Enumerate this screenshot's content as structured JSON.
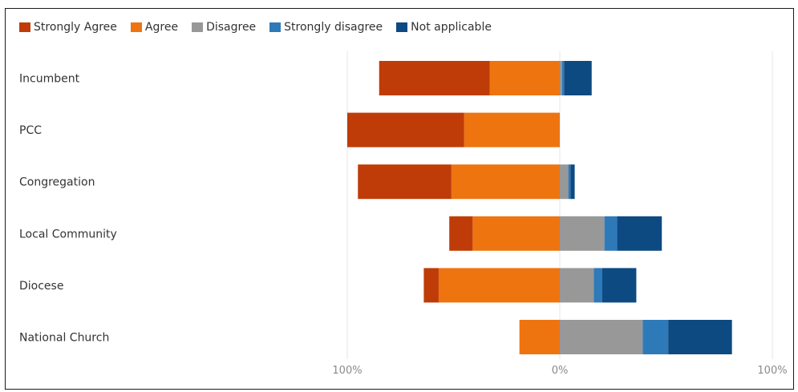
{
  "chart_data": {
    "type": "bar",
    "orientation": "horizontal",
    "stacking": "diverging",
    "categories": [
      "Incumbent",
      "PCC",
      "Congregation",
      "Local Community",
      "Diocese",
      "National Church"
    ],
    "series": [
      {
        "name": "Strongly Agree",
        "color": "#bf3c08",
        "values": [
          52,
          55,
          44,
          11,
          7,
          0
        ]
      },
      {
        "name": "Agree",
        "color": "#ee7410",
        "values": [
          33,
          45,
          51,
          41,
          57,
          19
        ]
      },
      {
        "name": "Disagree",
        "color": "#989898",
        "values": [
          1,
          0,
          4,
          21,
          16,
          39
        ]
      },
      {
        "name": "Strongly disagree",
        "color": "#2e7ab8",
        "values": [
          1,
          0,
          1,
          6,
          4,
          12
        ]
      },
      {
        "name": "Not applicable",
        "color": "#0d4a82",
        "values": [
          13,
          0,
          2,
          21,
          16,
          30
        ]
      }
    ],
    "x_ticks": [
      "100%",
      "0%",
      "100%"
    ],
    "xlim": [
      -100,
      100
    ],
    "negative_series": [
      "Strongly Agree",
      "Agree"
    ],
    "legend_position": "top-left",
    "grid": true,
    "title": "",
    "xlabel": "",
    "ylabel": ""
  }
}
